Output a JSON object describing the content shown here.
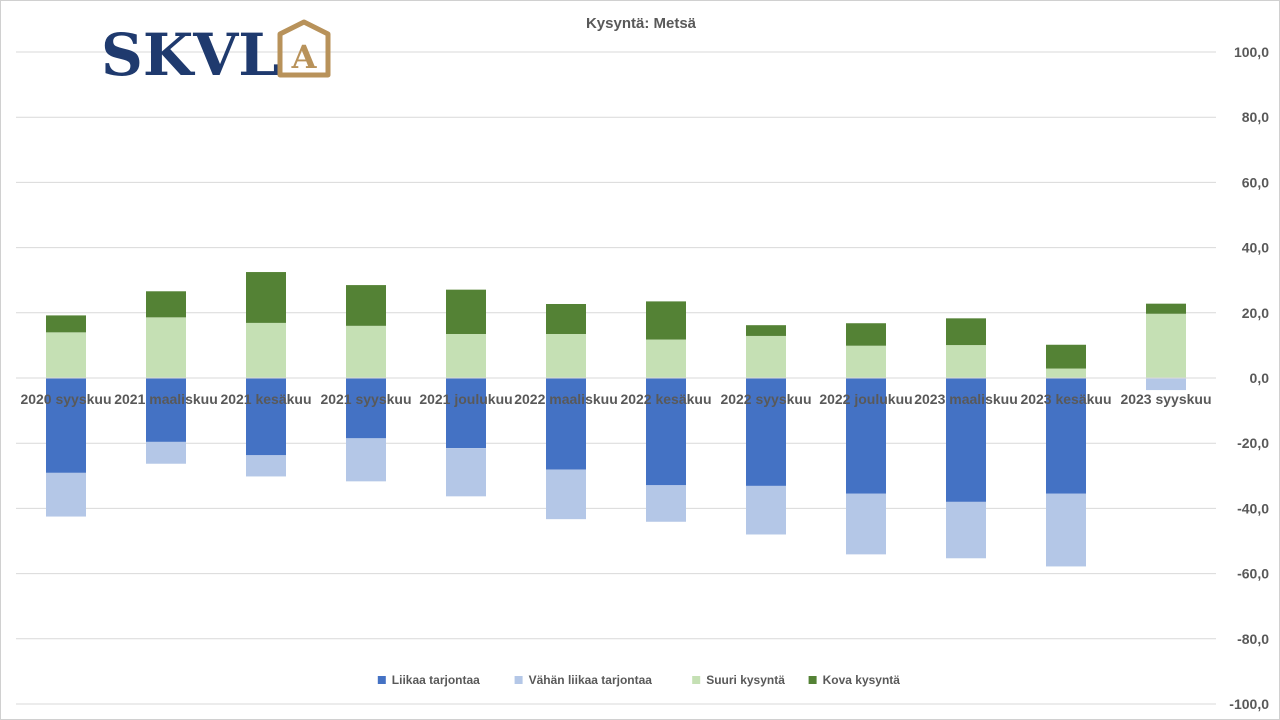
{
  "logo": {
    "text": "SKVL",
    "mark": "A",
    "text_color": "#1f3a6e",
    "mark_color": "#b8925a"
  },
  "chart_data": {
    "type": "bar",
    "stacked": true,
    "title": "Kysyntä: Metsä",
    "xlabel": "",
    "ylabel": "",
    "ylim": [
      -100,
      100
    ],
    "yticks": [
      100,
      80,
      60,
      40,
      20,
      0,
      -20,
      -40,
      -60,
      -80,
      -100
    ],
    "ytick_labels": [
      "100,0",
      "80,0",
      "60,0",
      "40,0",
      "20,0",
      "0,0",
      "-20,0",
      "-40,0",
      "-60,0",
      "-80,0",
      "-100,0"
    ],
    "y_axis_side": "right",
    "grid": true,
    "legend_position": "bottom",
    "categories": [
      "2020 syyskuu",
      "2021 maaliskuu",
      "2021 kesäkuu",
      "2021 syyskuu",
      "2021 joulukuu",
      "2022 maaliskuu",
      "2022 kesäkuu",
      "2022 syyskuu",
      "2022 joulukuu",
      "2023 maaliskuu",
      "2023 kesäkuu",
      "2023 syyskuu"
    ],
    "series": [
      {
        "name": "Liikaa tarjontaa",
        "color": "#4472c4",
        "values": [
          -29.1,
          -19.6,
          -23.7,
          -18.5,
          -21.5,
          -28.1,
          -32.9,
          -33.1,
          -35.5,
          -38.0,
          -35.5,
          -0.2
        ]
      },
      {
        "name": "Vähän liikaa tarjontaa",
        "color": "#b4c7e7",
        "values": [
          -13.4,
          -6.7,
          -6.5,
          -13.2,
          -14.8,
          -15.2,
          -11.2,
          -14.9,
          -18.6,
          -17.3,
          -22.3,
          -3.5
        ]
      },
      {
        "name": "Suuri kysyntä",
        "color": "#c5e0b4",
        "values": [
          14.0,
          18.6,
          16.9,
          16.0,
          13.5,
          13.5,
          11.8,
          12.9,
          9.9,
          10.1,
          2.9,
          19.7
        ]
      },
      {
        "name": "Kova kysyntä",
        "color": "#548235",
        "values": [
          5.2,
          8.0,
          15.6,
          12.5,
          13.6,
          9.2,
          11.7,
          3.3,
          6.9,
          8.2,
          7.3,
          3.1
        ]
      }
    ]
  }
}
